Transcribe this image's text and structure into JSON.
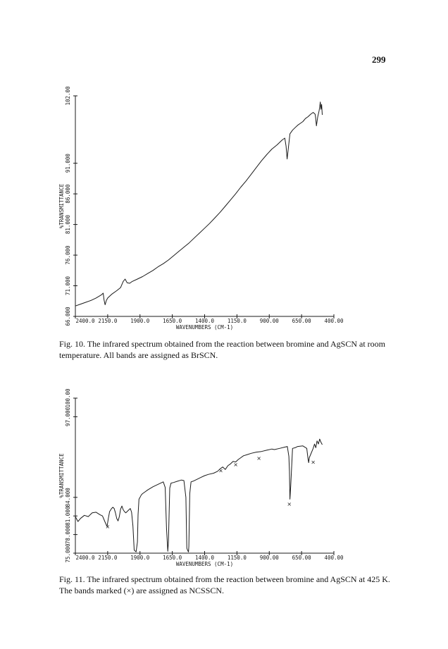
{
  "page_number": "299",
  "chart_data": [
    {
      "type": "line",
      "xlabel": "WAVENUMBERS (CM-1)",
      "ylabel": "%TRANSMITTANCE",
      "xlim": [
        2400,
        400
      ],
      "ylim": [
        66,
        102
      ],
      "x_ticks": [
        "2400.0",
        "2150.0",
        "1900.0",
        "1650.0",
        "1400.0",
        "1150.0",
        "900.00",
        "650.00",
        "400.00"
      ],
      "y_ticks": [
        {
          "value": 66,
          "label": "66.000"
        },
        {
          "value": 71,
          "label": "71.000"
        },
        {
          "value": 76,
          "label": "76.000"
        },
        {
          "value": 81,
          "label": "81.000"
        },
        {
          "value": 86,
          "label": "86.000"
        },
        {
          "value": 91,
          "label": "91.000"
        },
        {
          "value": 102,
          "label": "102.00"
        }
      ],
      "series": [
        {
          "x": [
            2400,
            2360,
            2320,
            2280,
            2240,
            2200,
            2185,
            2178,
            2170,
            2160,
            2150,
            2120,
            2080,
            2050,
            2030,
            2015,
            2000,
            1980,
            1960,
            1920,
            1880,
            1840,
            1800,
            1760,
            1720,
            1680,
            1640,
            1600,
            1560,
            1520,
            1480,
            1440,
            1400,
            1360,
            1320,
            1280,
            1240,
            1200,
            1160,
            1120,
            1080,
            1040,
            1000,
            960,
            920,
            880,
            840,
            800,
            780,
            770,
            762,
            755,
            740,
            720,
            700,
            680,
            660,
            640,
            620,
            600,
            580,
            560,
            545,
            540,
            535,
            525,
            515,
            510,
            505,
            500,
            495,
            490
          ],
          "y": [
            67.7,
            68.0,
            68.3,
            68.6,
            69.0,
            69.5,
            69.8,
            68.7,
            67.9,
            68.6,
            69.0,
            69.6,
            70.2,
            70.7,
            71.7,
            72.1,
            71.5,
            71.4,
            71.7,
            72.1,
            72.5,
            73.0,
            73.5,
            74.1,
            74.6,
            75.2,
            75.9,
            76.6,
            77.3,
            78.0,
            78.8,
            79.6,
            80.4,
            81.2,
            82.1,
            83.0,
            84.0,
            85.0,
            86.0,
            87.1,
            88.1,
            89.2,
            90.3,
            91.4,
            92.4,
            93.3,
            94.0,
            94.8,
            95.1,
            93.8,
            91.7,
            93.0,
            95.8,
            96.4,
            96.8,
            97.2,
            97.5,
            97.8,
            98.3,
            98.6,
            99.0,
            99.3,
            99.0,
            98.2,
            97.1,
            98.6,
            99.5,
            100.1,
            101.0,
            99.8,
            100.6,
            98.9
          ]
        }
      ]
    },
    {
      "type": "line",
      "xlabel": "WAVENUMBERS (CM-1)",
      "ylabel": "%TRANSMITTANCE",
      "xlim": [
        2400,
        400
      ],
      "ylim": [
        75,
        100
      ],
      "x_ticks": [
        "2400.0",
        "2150.0",
        "1900.0",
        "1650.0",
        "1400.0",
        "1150.0",
        "900.00",
        "650.00",
        "400.00"
      ],
      "y_ticks": [
        {
          "value": 75,
          "label": "75.000"
        },
        {
          "value": 78,
          "label": "78.000"
        },
        {
          "value": 81,
          "label": "81.000"
        },
        {
          "value": 84,
          "label": "84.000"
        },
        {
          "value": 97,
          "label": "97.000"
        },
        {
          "value": 100,
          "label": "100.00"
        }
      ],
      "series": [
        {
          "x": [
            2400,
            2380,
            2360,
            2330,
            2300,
            2270,
            2240,
            2210,
            2190,
            2170,
            2155,
            2145,
            2135,
            2120,
            2110,
            2100,
            2090,
            2080,
            2070,
            2060,
            2050,
            2040,
            2030,
            2020,
            2010,
            2000,
            1990,
            1975,
            1965,
            1955,
            1945,
            1930,
            1920,
            1915,
            1908,
            1900,
            1890,
            1880,
            1860,
            1840,
            1800,
            1760,
            1720,
            1705,
            1695,
            1685,
            1680,
            1670,
            1660,
            1640,
            1610,
            1580,
            1560,
            1545,
            1538,
            1530,
            1525,
            1522,
            1515,
            1505,
            1490,
            1460,
            1430,
            1400,
            1370,
            1330,
            1300,
            1280,
            1260,
            1240,
            1220,
            1200,
            1180,
            1160,
            1140,
            1120,
            1100,
            1070,
            1040,
            1000,
            960,
            920,
            880,
            860,
            820,
            780,
            760,
            748,
            744,
            740,
            734,
            720,
            700,
            680,
            640,
            610,
            600,
            595,
            590,
            560,
            550,
            540,
            530,
            520,
            510,
            500,
            490
          ],
          "y": [
            80.9,
            80.1,
            80.6,
            81.1,
            80.9,
            81.5,
            81.6,
            81.2,
            81.0,
            80.0,
            79.3,
            80.6,
            81.7,
            82.2,
            82.4,
            82.2,
            81.5,
            80.6,
            80.2,
            80.9,
            82.1,
            82.6,
            82.0,
            81.7,
            81.5,
            81.7,
            81.9,
            82.2,
            81.6,
            79.4,
            75.5,
            75.2,
            76.8,
            81.2,
            83.7,
            84.0,
            84.4,
            84.6,
            84.9,
            85.2,
            85.7,
            86.1,
            86.5,
            85.6,
            79.0,
            75.3,
            76.8,
            85.5,
            86.3,
            86.4,
            86.6,
            86.8,
            86.7,
            84.0,
            75.8,
            75.4,
            75.2,
            76.1,
            84.6,
            86.5,
            86.6,
            86.9,
            87.2,
            87.5,
            87.7,
            87.9,
            88.2,
            88.6,
            88.9,
            88.5,
            89.1,
            89.4,
            89.8,
            89.7,
            90.1,
            90.4,
            90.7,
            90.9,
            91.1,
            91.3,
            91.4,
            91.6,
            91.8,
            91.7,
            91.9,
            92.1,
            92.2,
            90.6,
            88.2,
            83.7,
            85.8,
            91.9,
            92.0,
            92.2,
            92.3,
            91.9,
            90.2,
            89.6,
            90.4,
            91.9,
            92.6,
            92.0,
            93.1,
            92.6,
            93.4,
            92.9,
            92.5
          ]
        }
      ],
      "band_markers": [
        {
          "symbol": "×",
          "x": 2150,
          "y": 79.0
        },
        {
          "symbol": "×",
          "x": 1275,
          "y": 88.0
        },
        {
          "symbol": "×",
          "x": 1160,
          "y": 89.0
        },
        {
          "symbol": "×",
          "x": 980,
          "y": 90.0
        },
        {
          "symbol": "×",
          "x": 745,
          "y": 82.6
        },
        {
          "symbol": "×",
          "x": 560,
          "y": 89.4
        }
      ]
    }
  ],
  "captions": [
    "Fig. 10. The infrared spectrum obtained from the reaction between bromine and AgSCN at room temperature. All bands are assigned as BrSCN.",
    "Fig. 11. The infrared spectrum obtained from the reaction between bromine and AgSCN at 425 K. The bands marked (×) are assigned as NCSSCN."
  ]
}
